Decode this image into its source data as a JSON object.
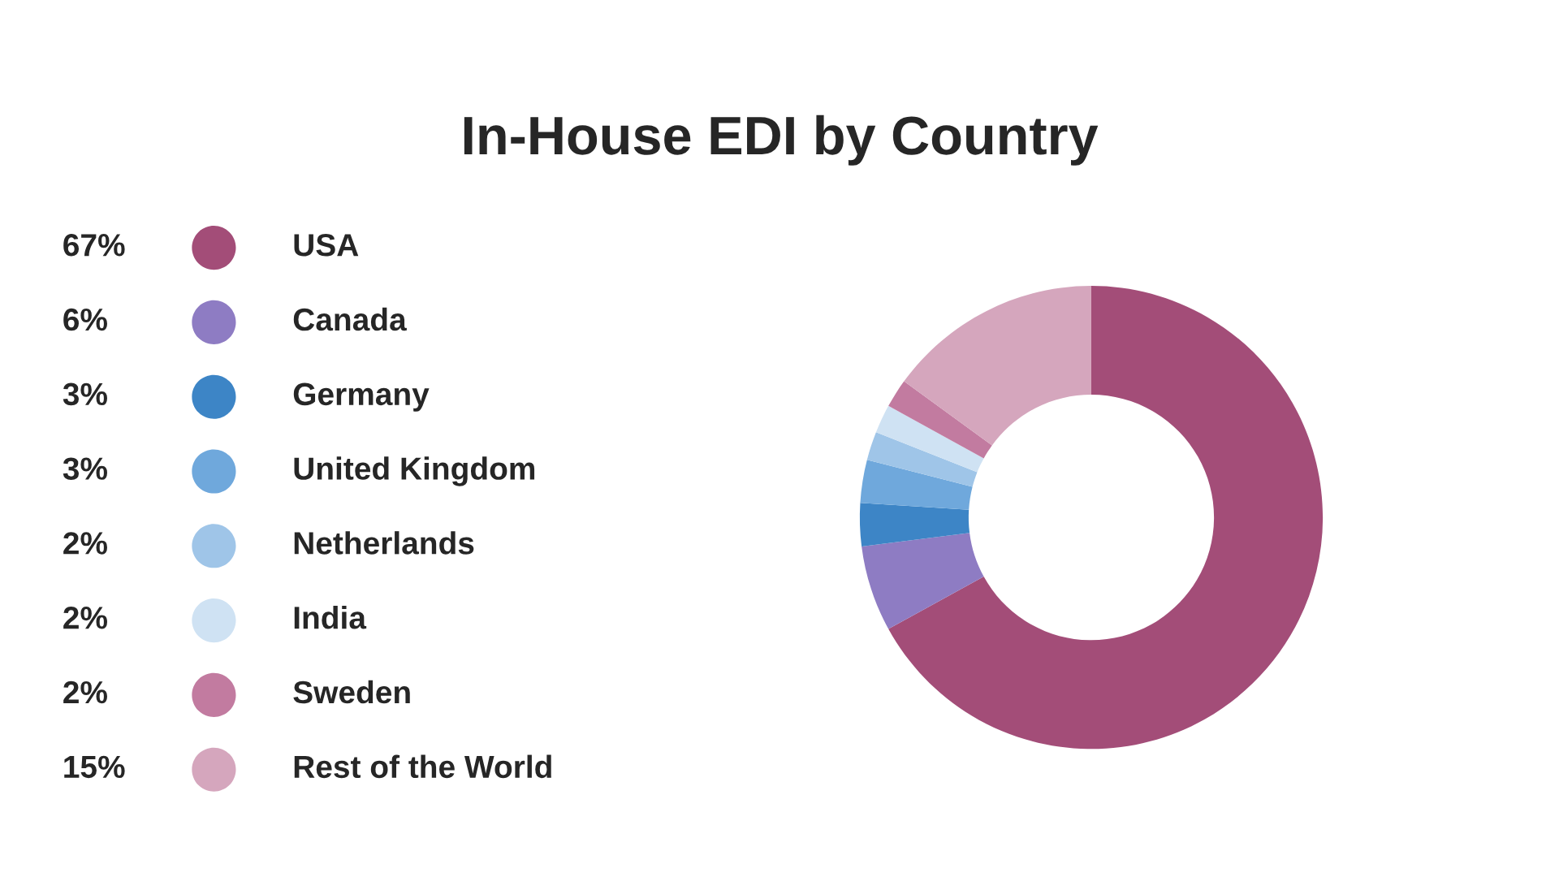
{
  "chart_data": {
    "type": "donut",
    "title": "In-House EDI by Country",
    "categories": [
      "USA",
      "Canada",
      "Germany",
      "United Kingdom",
      "Netherlands",
      "India",
      "Sweden",
      "Rest of the World"
    ],
    "values": [
      67,
      6,
      3,
      3,
      2,
      2,
      2,
      15
    ],
    "value_labels": [
      "67%",
      "6%",
      "3%",
      "3%",
      "2%",
      "2%",
      "2%",
      "15%"
    ],
    "colors": [
      "#a34d78",
      "#8e7cc3",
      "#3d85c6",
      "#6fa8dc",
      "#9fc5e8",
      "#cfe2f3",
      "#c27ba0",
      "#d5a6bd"
    ],
    "legend": "left"
  }
}
